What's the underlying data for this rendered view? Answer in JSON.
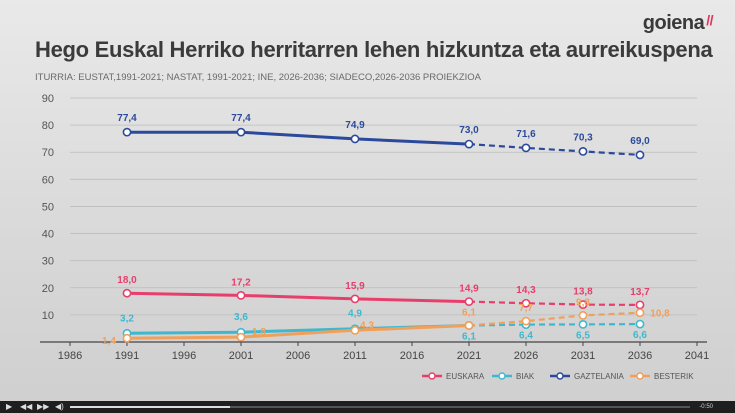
{
  "brand": {
    "name": "goiena",
    "mark": "//"
  },
  "header": {
    "title": "Hego Euskal Herriko herritarren lehen hizkuntza eta aurreikuspena",
    "source": "ITURRIA: EUSTAT,1991-2021; NASTAT, 1991-2021; INE, 2026-2036; SIADECO,2026-2036 PROIEKZIOA"
  },
  "colors": {
    "euskara": "#e83e6c",
    "biak": "#3fb8cf",
    "gaztelania": "#2b4a9b",
    "besterik": "#f0a05a"
  },
  "chart_data": {
    "type": "line",
    "title": "Hego Euskal Herriko herritarren lehen hizkuntza eta aurreikuspena",
    "xlim": [
      1986,
      2041
    ],
    "ylim": [
      0,
      90
    ],
    "x_ticks": [
      "1986",
      "1991",
      "1996",
      "2001",
      "2006",
      "2011",
      "2016",
      "2021",
      "2026",
      "2031",
      "2036",
      "2041"
    ],
    "y_ticks": [
      "10",
      "20",
      "30",
      "40",
      "50",
      "60",
      "70",
      "80",
      "90"
    ],
    "projection_from": 2021,
    "grid": "horizontal",
    "legend_position": "bottom-right",
    "series": [
      {
        "name": "EUSKARA",
        "color": "#e83e6c",
        "x": [
          1991,
          2001,
          2011,
          2021,
          2026,
          2031,
          2036
        ],
        "values": [
          18.0,
          17.2,
          15.9,
          14.9,
          14.3,
          13.8,
          13.7
        ],
        "labels": [
          "18,0",
          "17,2",
          "15,9",
          "14,9",
          "14,3",
          "13,8",
          "13,7"
        ]
      },
      {
        "name": "BIAK",
        "color": "#3fb8cf",
        "x": [
          1991,
          2001,
          2011,
          2021,
          2026,
          2031,
          2036
        ],
        "values": [
          3.2,
          3.6,
          4.9,
          6.1,
          6.4,
          6.5,
          6.6
        ],
        "labels": [
          "3,2",
          "3,6",
          "4,9",
          "6,1",
          "6,4",
          "6,5",
          "6,6"
        ]
      },
      {
        "name": "GAZTELANIA",
        "color": "#2b4a9b",
        "x": [
          1991,
          2001,
          2011,
          2021,
          2026,
          2031,
          2036
        ],
        "values": [
          77.4,
          77.4,
          74.9,
          73.0,
          71.6,
          70.3,
          69.0
        ],
        "labels": [
          "77,4",
          "77,4",
          "74,9",
          "73,0",
          "71,6",
          "70,3",
          "69,0"
        ]
      },
      {
        "name": "BESTERIK",
        "color": "#f0a05a",
        "x": [
          1991,
          2001,
          2011,
          2021,
          2026,
          2031,
          2036
        ],
        "values": [
          1.4,
          1.8,
          4.3,
          6.1,
          7.7,
          9.8,
          10.8
        ],
        "labels": [
          "1,4",
          "1,8",
          "4,3",
          "6,1",
          "7,7",
          "9,8",
          "10,8"
        ]
      }
    ]
  },
  "player": {
    "time": "-0:50"
  }
}
